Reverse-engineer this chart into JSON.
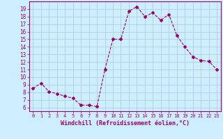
{
  "x": [
    0,
    1,
    2,
    3,
    4,
    5,
    6,
    7,
    8,
    9,
    10,
    11,
    12,
    13,
    14,
    15,
    16,
    17,
    18,
    19,
    20,
    21,
    22,
    23
  ],
  "y": [
    8.5,
    9.2,
    8.1,
    7.8,
    7.5,
    7.2,
    6.3,
    6.3,
    6.1,
    11.0,
    15.0,
    15.0,
    18.7,
    19.3,
    18.0,
    18.5,
    17.5,
    18.3,
    15.5,
    14.0,
    12.7,
    12.2,
    12.1,
    11.0
  ],
  "line_color": "#aa007f",
  "marker": "D",
  "marker_size": 2,
  "bg_color": "#cceeff",
  "grid_color": "#aacccc",
  "xlabel": "Windchill (Refroidissement éolien,°C)",
  "xlim": [
    -0.5,
    23.5
  ],
  "ylim": [
    5.5,
    20.0
  ],
  "yticks": [
    6,
    7,
    8,
    9,
    10,
    11,
    12,
    13,
    14,
    15,
    16,
    17,
    18,
    19
  ],
  "xticks": [
    0,
    1,
    2,
    3,
    4,
    5,
    6,
    7,
    8,
    9,
    10,
    11,
    12,
    13,
    14,
    15,
    16,
    17,
    18,
    19,
    20,
    21,
    22,
    23
  ],
  "line_color_hex": "#9b0070",
  "spine_color": "#9b0070",
  "tick_color": "#9b0070",
  "label_color": "#9b0070",
  "xlabel_fontsize": 6.0,
  "tick_fontsize_x": 5.0,
  "tick_fontsize_y": 5.5
}
